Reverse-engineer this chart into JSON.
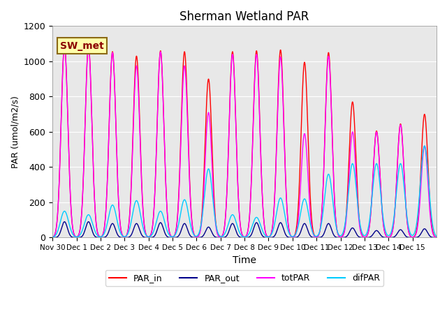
{
  "title": "Sherman Wetland PAR",
  "xlabel": "Time",
  "ylabel": "PAR (umol/m2/s)",
  "ylim": [
    0,
    1200
  ],
  "site_label": "SW_met",
  "bg_color": "#e8e8e8",
  "legend_entries": [
    "PAR_in",
    "PAR_out",
    "totPAR",
    "difPAR"
  ],
  "legend_colors": [
    "#ff0000",
    "#00008b",
    "#ff00ff",
    "#00ccff"
  ],
  "total_days": 15,
  "par_in_peaks": [
    1090,
    1090,
    1055,
    1030,
    1060,
    1055,
    900,
    1055,
    1060,
    1065,
    995,
    1050,
    770,
    605,
    645,
    700
  ],
  "par_tot_peaks": [
    1090,
    1085,
    1050,
    975,
    1055,
    975,
    710,
    1040,
    1040,
    1025,
    590,
    1030,
    600,
    600,
    640,
    520
  ],
  "par_out_peaks": [
    90,
    90,
    80,
    80,
    85,
    80,
    60,
    80,
    85,
    85,
    80,
    80,
    55,
    40,
    45,
    50
  ],
  "par_dif_peaks": [
    150,
    130,
    185,
    210,
    150,
    215,
    390,
    130,
    115,
    225,
    220,
    360,
    420,
    420,
    420,
    520
  ],
  "x_tick_labels": [
    "Nov 30",
    "Dec 1",
    "Dec 2",
    "Dec 3",
    "Dec 4",
    "Dec 5",
    "Dec 6",
    "Dec 7",
    "Dec 8",
    "Dec 9",
    "Dec 10",
    "Dec 11",
    "Dec 12",
    "Dec 13",
    "Dec 14",
    "Dec 15"
  ],
  "x_tick_positions": [
    0,
    1,
    2,
    3,
    4,
    5,
    6,
    7,
    8,
    9,
    10,
    11,
    12,
    13,
    14,
    15
  ],
  "yticks": [
    0,
    200,
    400,
    600,
    800,
    1000,
    1200
  ]
}
